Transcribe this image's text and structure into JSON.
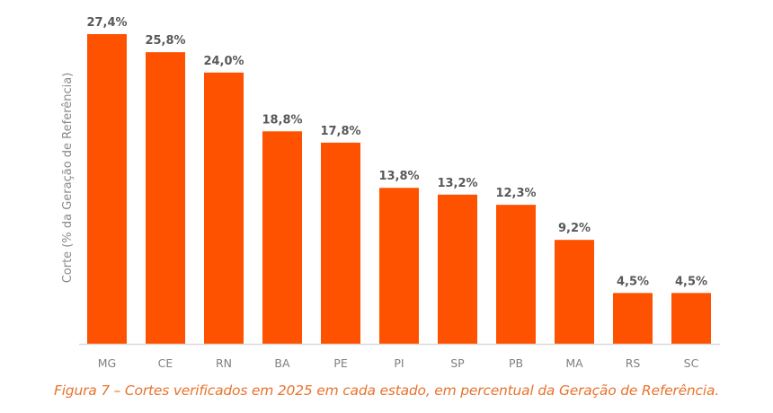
{
  "chart_data": {
    "type": "bar",
    "title": "",
    "xlabel": "",
    "ylabel": "Corte (% da Geração de Referência)",
    "categories": [
      "MG",
      "CE",
      "RN",
      "BA",
      "PE",
      "PI",
      "SP",
      "PB",
      "MA",
      "RS",
      "SC"
    ],
    "values": [
      27.4,
      25.8,
      24.0,
      18.8,
      17.8,
      13.8,
      13.2,
      12.3,
      9.2,
      4.5,
      4.5
    ],
    "data_labels": [
      "27,4%",
      "25,8%",
      "24,0%",
      "18,8%",
      "17,8%",
      "13,8%",
      "13,2%",
      "12,3%",
      "9,2%",
      "4,5%",
      "4,5%"
    ],
    "ylim": [
      0,
      27.4
    ],
    "grid": false,
    "legend": "none",
    "bar_color": "#FF5200"
  },
  "caption": "Figura 7 – Cortes verificados em 2025 em cada estado, em percentual da Geração de Referência.",
  "colors": {
    "caption": "#E8732E",
    "value_label": "#595959",
    "tick_label": "#808080"
  }
}
